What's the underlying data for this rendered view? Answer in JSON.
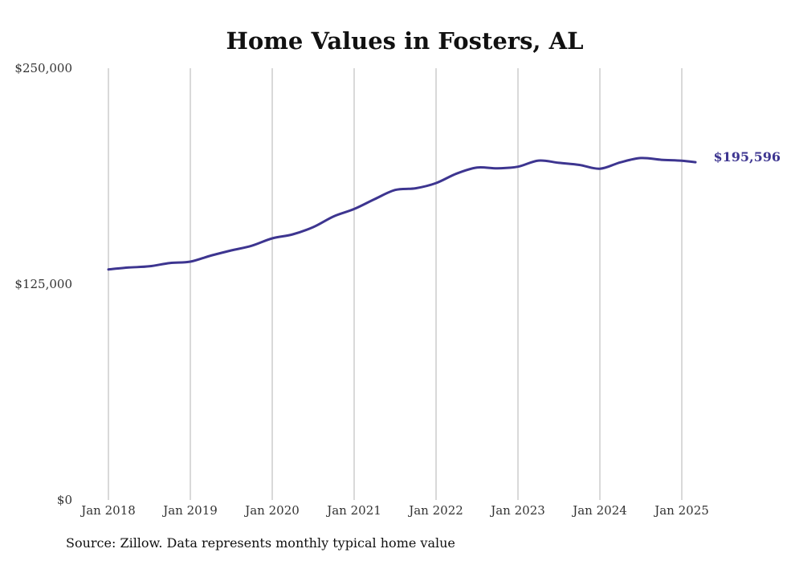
{
  "chart_data": {
    "type": "line",
    "title": "Home Values in Fosters, AL",
    "xlabel": "",
    "ylabel": "",
    "ylim": [
      0,
      250000
    ],
    "yticks": [
      {
        "value": 0,
        "label": "$0"
      },
      {
        "value": 125000,
        "label": "$125,000"
      },
      {
        "value": 250000,
        "label": "$250,000"
      }
    ],
    "xticks": [
      {
        "value": "2018-01",
        "label": "Jan 2018"
      },
      {
        "value": "2019-01",
        "label": "Jan 2019"
      },
      {
        "value": "2020-01",
        "label": "Jan 2020"
      },
      {
        "value": "2021-01",
        "label": "Jan 2021"
      },
      {
        "value": "2022-01",
        "label": "Jan 2022"
      },
      {
        "value": "2023-01",
        "label": "Jan 2023"
      },
      {
        "value": "2024-01",
        "label": "Jan 2024"
      },
      {
        "value": "2025-01",
        "label": "Jan 2025"
      }
    ],
    "grid": "vertical",
    "series": [
      {
        "color": "#3d3590",
        "end_label": "$195,596",
        "points": [
          [
            "2018-01",
            133500
          ],
          [
            "2018-04",
            134600
          ],
          [
            "2018-07",
            135300
          ],
          [
            "2018-10",
            137200
          ],
          [
            "2019-01",
            138000
          ],
          [
            "2019-04",
            141500
          ],
          [
            "2019-07",
            144500
          ],
          [
            "2019-10",
            147200
          ],
          [
            "2020-01",
            151500
          ],
          [
            "2020-04",
            153800
          ],
          [
            "2020-07",
            158000
          ],
          [
            "2020-10",
            164200
          ],
          [
            "2021-01",
            168500
          ],
          [
            "2021-04",
            174200
          ],
          [
            "2021-07",
            179500
          ],
          [
            "2021-10",
            180500
          ],
          [
            "2022-01",
            183500
          ],
          [
            "2022-04",
            189000
          ],
          [
            "2022-07",
            192500
          ],
          [
            "2022-10",
            192000
          ],
          [
            "2023-01",
            193000
          ],
          [
            "2023-04",
            196500
          ],
          [
            "2023-07",
            195200
          ],
          [
            "2023-10",
            194000
          ],
          [
            "2024-01",
            191800
          ],
          [
            "2024-04",
            195500
          ],
          [
            "2024-07",
            198000
          ],
          [
            "2024-10",
            197000
          ],
          [
            "2025-01",
            196400
          ],
          [
            "2025-03",
            195596
          ]
        ]
      }
    ]
  },
  "source_note": "Source: Zillow. Data represents monthly typical home value"
}
